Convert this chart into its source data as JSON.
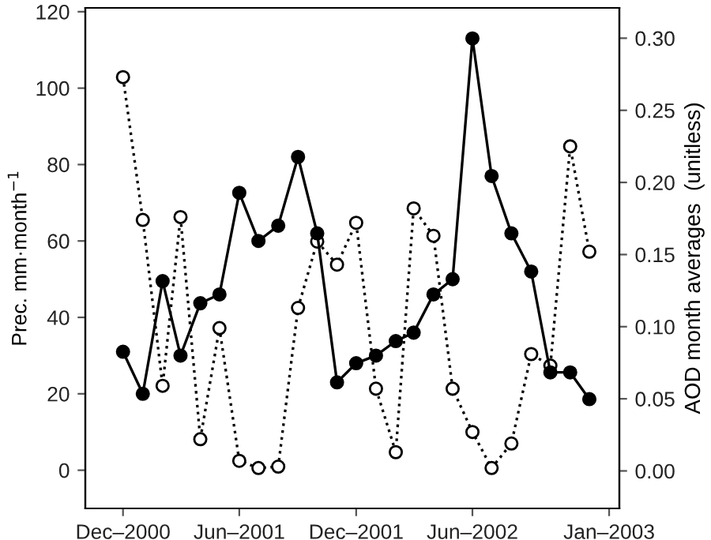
{
  "chart_data": {
    "type": "line",
    "ylabel": "Prec. mm·month$^{−1}$",
    "y2label": "AOD month averages  (unitless)",
    "x": [
      "2000-12",
      "2001-01",
      "2001-02",
      "2001-03",
      "2001-04",
      "2001-05",
      "2001-06",
      "2001-07",
      "2001-08",
      "2001-09",
      "2001-10",
      "2001-11",
      "2001-12",
      "2002-01",
      "2002-02",
      "2002-03",
      "2002-04",
      "2002-05",
      "2002-06",
      "2002-07",
      "2002-08",
      "2002-09",
      "2002-10",
      "2002-11",
      "2002-12"
    ],
    "series": [
      {
        "color": "#000000",
        "line_style": "solid",
        "values": [
          31,
          20,
          49.5,
          30,
          43.7,
          46,
          72.6,
          60,
          64,
          82,
          62,
          23,
          28,
          30,
          33.8,
          36,
          46,
          50,
          113,
          77,
          62,
          52,
          25.6,
          25.6,
          18.6
        ]
      },
      {
        "color": "#ffffff",
        "line_style": "dotted",
        "axis": "y2",
        "values": [
          0.273,
          0.174,
          0.059,
          0.176,
          0.022,
          0.099,
          0.007,
          0.002,
          0.003,
          0.113,
          0.159,
          0.143,
          0.172,
          0.057,
          0.013,
          0.182,
          0.163,
          0.057,
          0.027,
          0.002,
          0.019,
          0.081,
          0.073,
          0.225,
          0.152
        ]
      }
    ],
    "marker": "circle",
    "xlim": [
      "2000-10-03",
      "2003-01-17"
    ],
    "xticks": [
      {
        "value": "2000-12-01",
        "label": "Dec–2000"
      },
      {
        "value": "2001-06-01",
        "label": "Jun–2001"
      },
      {
        "value": "2001-12-01",
        "label": "Dec–2001"
      },
      {
        "value": "2002-06-01",
        "label": "Jun–2002"
      },
      {
        "value": "2003-01-01",
        "label": "Jan–2003"
      }
    ],
    "ylim": [
      -10,
      121
    ],
    "yticks": [
      0,
      20,
      40,
      60,
      80,
      100,
      120
    ],
    "y2lim": [
      -0.026,
      0.321
    ],
    "y2ticks": [
      {
        "value": 0,
        "label": "0.00"
      },
      {
        "value": 0.05,
        "label": "0.05"
      },
      {
        "value": 0.1,
        "label": "0.10"
      },
      {
        "value": 0.15,
        "label": "0.15"
      },
      {
        "value": 0.2,
        "label": "0.20"
      },
      {
        "value": 0.25,
        "label": "0.25"
      },
      {
        "value": 0.3,
        "label": "0.30"
      }
    ],
    "grid": false,
    "legend": false
  }
}
